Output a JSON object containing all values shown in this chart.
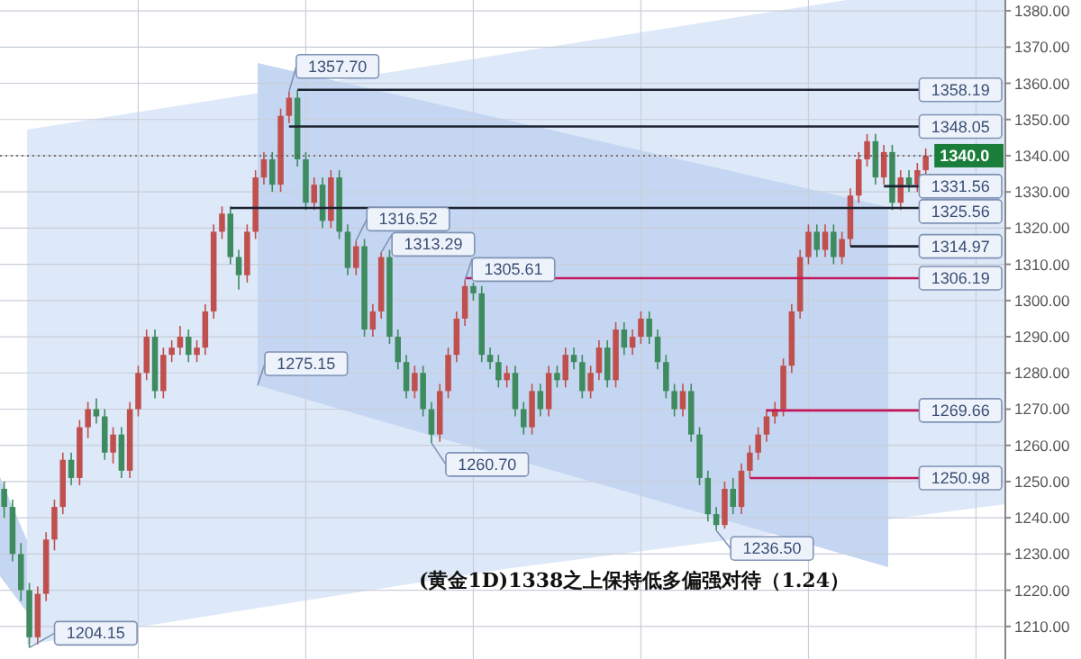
{
  "chart_data": {
    "type": "candlestick",
    "title": "(黄金1D)1338之上保持低多偏强对待（1.24）",
    "categories": [
      null,
      null,
      null,
      null,
      null,
      null,
      null,
      null,
      null,
      null,
      null,
      null,
      null,
      null,
      null,
      null,
      null,
      null,
      null,
      null,
      null,
      null,
      null,
      null,
      null,
      null,
      null,
      null,
      null,
      null,
      null,
      null,
      null,
      null,
      null,
      null,
      null,
      null,
      null,
      null,
      null,
      null,
      null,
      null,
      null,
      null,
      null,
      null,
      null,
      null,
      null,
      null,
      null,
      null,
      null,
      null,
      null,
      null,
      null,
      null,
      null,
      null,
      null,
      null,
      null,
      null,
      null,
      null,
      null,
      null,
      null,
      null,
      null,
      null,
      null,
      null,
      null,
      null,
      null,
      null,
      null,
      null,
      null,
      null,
      null,
      null,
      null,
      null,
      null,
      null,
      null,
      null,
      null,
      null,
      null,
      null,
      null,
      null,
      null,
      null,
      null,
      null,
      null,
      null,
      null,
      null,
      null,
      null,
      null,
      null,
      null,
      null,
      null,
      null,
      null,
      null,
      null,
      null,
      null,
      null
    ],
    "ohlc": [
      [
        1248,
        1250,
        1240,
        1243
      ],
      [
        1243,
        1245,
        1228,
        1230
      ],
      [
        1230,
        1233,
        1217,
        1220
      ],
      [
        1220,
        1222,
        1204.15,
        1207
      ],
      [
        1207,
        1221,
        1205,
        1219
      ],
      [
        1219,
        1236,
        1217,
        1234
      ],
      [
        1234,
        1245,
        1231,
        1243
      ],
      [
        1243,
        1258,
        1241,
        1256
      ],
      [
        1256,
        1258,
        1249,
        1251
      ],
      [
        1251,
        1267,
        1249,
        1265
      ],
      [
        1265,
        1272,
        1262,
        1270
      ],
      [
        1270,
        1273,
        1266,
        1268
      ],
      [
        1268,
        1270,
        1256,
        1258
      ],
      [
        1258,
        1265,
        1255,
        1263
      ],
      [
        1263,
        1265,
        1251,
        1253
      ],
      [
        1253,
        1272,
        1251,
        1270
      ],
      [
        1270,
        1282,
        1268,
        1280
      ],
      [
        1280,
        1292,
        1278,
        1290
      ],
      [
        1290,
        1292,
        1273,
        1275
      ],
      [
        1275,
        1287,
        1273,
        1285
      ],
      [
        1285,
        1289,
        1283,
        1287
      ],
      [
        1287,
        1293,
        1285,
        1290
      ],
      [
        1290,
        1292,
        1283,
        1285
      ],
      [
        1285,
        1289,
        1283,
        1287
      ],
      [
        1287,
        1299,
        1285,
        1297
      ],
      [
        1297,
        1321,
        1295,
        1319
      ],
      [
        1319,
        1326,
        1317,
        1324
      ],
      [
        1324,
        1326,
        1310,
        1312
      ],
      [
        1312,
        1314,
        1303,
        1307
      ],
      [
        1307,
        1321,
        1305,
        1319
      ],
      [
        1319,
        1336,
        1317,
        1334
      ],
      [
        1334,
        1341,
        1332,
        1339
      ],
      [
        1339,
        1341,
        1330,
        1332
      ],
      [
        1332,
        1353,
        1330,
        1351
      ],
      [
        1351,
        1357.7,
        1349,
        1356
      ],
      [
        1356,
        1358,
        1337,
        1339
      ],
      [
        1339,
        1341,
        1325,
        1327
      ],
      [
        1327,
        1334,
        1325,
        1332
      ],
      [
        1332,
        1334,
        1320,
        1322
      ],
      [
        1322,
        1336,
        1320,
        1334
      ],
      [
        1334,
        1336,
        1317,
        1319
      ],
      [
        1319,
        1321,
        1307,
        1309
      ],
      [
        1309,
        1316.52,
        1307,
        1315
      ],
      [
        1315,
        1317,
        1290,
        1292
      ],
      [
        1292,
        1299,
        1290,
        1297
      ],
      [
        1297,
        1313.29,
        1295,
        1312
      ],
      [
        1312,
        1314,
        1288,
        1290
      ],
      [
        1290,
        1292,
        1281,
        1283
      ],
      [
        1283,
        1285,
        1273,
        1275
      ],
      [
        1275,
        1282,
        1273,
        1280
      ],
      [
        1280,
        1282,
        1268,
        1270
      ],
      [
        1270,
        1272,
        1260.7,
        1263
      ],
      [
        1263,
        1277,
        1261,
        1275
      ],
      [
        1275,
        1287,
        1273,
        1285
      ],
      [
        1285,
        1297,
        1283,
        1295
      ],
      [
        1295,
        1305.61,
        1293,
        1304
      ],
      [
        1304,
        1305,
        1300,
        1302
      ],
      [
        1302,
        1304,
        1283,
        1285
      ],
      [
        1285,
        1287,
        1281,
        1283
      ],
      [
        1283,
        1285,
        1276,
        1278
      ],
      [
        1278,
        1282,
        1276,
        1280
      ],
      [
        1280,
        1282,
        1268,
        1270
      ],
      [
        1270,
        1272,
        1263,
        1265
      ],
      [
        1265,
        1277,
        1263,
        1275
      ],
      [
        1275,
        1277,
        1268,
        1270
      ],
      [
        1270,
        1282,
        1268,
        1280
      ],
      [
        1280,
        1282,
        1276,
        1278
      ],
      [
        1278,
        1287,
        1276,
        1285
      ],
      [
        1285,
        1287,
        1281,
        1283
      ],
      [
        1283,
        1285,
        1273,
        1275
      ],
      [
        1275,
        1282,
        1273,
        1280
      ],
      [
        1280,
        1289,
        1278,
        1287
      ],
      [
        1287,
        1289,
        1276,
        1278
      ],
      [
        1278,
        1294,
        1276,
        1292
      ],
      [
        1292,
        1294,
        1285,
        1287
      ],
      [
        1287,
        1292,
        1285,
        1290
      ],
      [
        1290,
        1297,
        1288,
        1295
      ],
      [
        1295,
        1297,
        1288,
        1290
      ],
      [
        1290,
        1292,
        1281,
        1283
      ],
      [
        1283,
        1285,
        1273,
        1275
      ],
      [
        1275,
        1277,
        1268,
        1270
      ],
      [
        1270,
        1277,
        1268,
        1275
      ],
      [
        1275,
        1277,
        1261,
        1263
      ],
      [
        1263,
        1265,
        1249,
        1251
      ],
      [
        1251,
        1253,
        1239,
        1241
      ],
      [
        1241,
        1243,
        1236.5,
        1238
      ],
      [
        1238,
        1250,
        1237,
        1248
      ],
      [
        1248,
        1251,
        1241,
        1243
      ],
      [
        1243,
        1255,
        1241,
        1253
      ],
      [
        1253,
        1260,
        1251,
        1258
      ],
      [
        1258,
        1265,
        1256,
        1263
      ],
      [
        1263,
        1270,
        1261,
        1268
      ],
      [
        1268,
        1272,
        1266,
        1270
      ],
      [
        1270,
        1284,
        1268,
        1282
      ],
      [
        1282,
        1299,
        1280,
        1297
      ],
      [
        1297,
        1314,
        1295,
        1312
      ],
      [
        1312,
        1321,
        1310,
        1319
      ],
      [
        1319,
        1321,
        1312,
        1314
      ],
      [
        1314,
        1321,
        1312,
        1319
      ],
      [
        1319,
        1321,
        1310,
        1312
      ],
      [
        1312,
        1319,
        1310,
        1317
      ],
      [
        1317,
        1331,
        1315,
        1329
      ],
      [
        1329,
        1341,
        1327,
        1339
      ],
      [
        1339,
        1346,
        1337,
        1344
      ],
      [
        1344,
        1346,
        1332,
        1334
      ],
      [
        1334,
        1343,
        1332,
        1341
      ],
      [
        1341,
        1343,
        1325,
        1327
      ],
      [
        1327,
        1336,
        1325,
        1334
      ],
      [
        1334,
        1336,
        1330,
        1332
      ],
      [
        1332,
        1338,
        1330,
        1336
      ],
      [
        1336,
        1342,
        1334,
        1340
      ],
      null,
      null,
      null,
      null,
      null,
      null,
      null,
      null,
      null
    ],
    "ylim": [
      1201,
      1383
    ],
    "yticks": [
      {
        "value": 1210,
        "label": "1210.00"
      },
      {
        "value": 1220,
        "label": "1220.00"
      },
      {
        "value": 1230,
        "label": "1230.00"
      },
      {
        "value": 1240,
        "label": "1240.00"
      },
      {
        "value": 1250,
        "label": "1250.00"
      },
      {
        "value": 1260,
        "label": "1260.00"
      },
      {
        "value": 1270,
        "label": "1270.00"
      },
      {
        "value": 1280,
        "label": "1280.00"
      },
      {
        "value": 1290,
        "label": "1290.00"
      },
      {
        "value": 1300,
        "label": "1300.00"
      },
      {
        "value": 1310,
        "label": "1310.00"
      },
      {
        "value": 1320,
        "label": "1320.00"
      },
      {
        "value": 1330,
        "label": "1330.00"
      },
      {
        "value": 1340,
        "label": "1340.00"
      },
      {
        "value": 1350,
        "label": "1350.00"
      },
      {
        "value": 1360,
        "label": "1360.00"
      },
      {
        "value": 1370,
        "label": "1370.00"
      },
      {
        "value": 1380,
        "label": "1380.00"
      }
    ],
    "tick_labels": "y",
    "grid": true,
    "ref_lines": [
      {
        "axis": "y",
        "value": 1358.19,
        "label": "1358.19",
        "color": "#1c2230"
      },
      {
        "axis": "y",
        "value": 1348.05,
        "label": "1348.05",
        "color": "#1c2230"
      },
      {
        "axis": "y",
        "value": 1340,
        "label": "1340.0",
        "color": "#555555",
        "line_style": "dotted"
      },
      {
        "axis": "y",
        "value": 1331.56,
        "label": "1331.56",
        "color": "#1c2230"
      },
      {
        "axis": "y",
        "value": 1325.56,
        "label": "1325.56",
        "color": "#1c2230"
      },
      {
        "axis": "y",
        "value": 1314.97,
        "label": "1314.97",
        "color": "#1c2230"
      },
      {
        "axis": "y",
        "value": 1306.19,
        "label": "1306.19",
        "color": "#c2185b"
      },
      {
        "axis": "y",
        "value": 1269.66,
        "label": "1269.66",
        "color": "#c2185b"
      },
      {
        "axis": "y",
        "value": 1250.98,
        "label": "1250.98",
        "color": "#c2185b"
      }
    ],
    "annotations": [
      "1357.70",
      "1316.52",
      "1313.29",
      "1305.61",
      "1275.15",
      "1260.70",
      "1236.50",
      "1204.15"
    ]
  }
}
